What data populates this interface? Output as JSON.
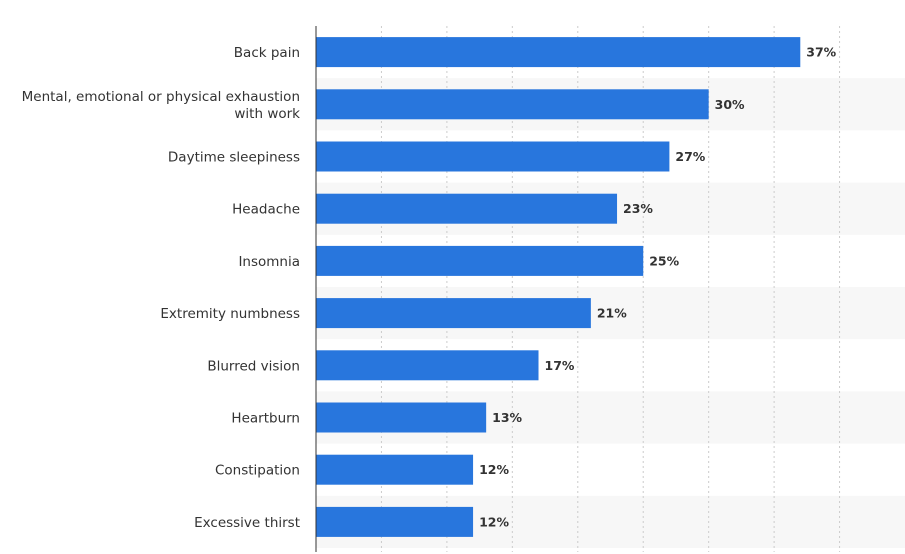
{
  "chart_data": {
    "type": "bar",
    "orientation": "horizontal",
    "title": "",
    "xlabel": "",
    "ylabel": "",
    "xlim": [
      0,
      45
    ],
    "grid": true,
    "categories": [
      "Back pain",
      "Mental, emotional or physical exhaustion with work",
      "Daytime sleepiness",
      "Headache",
      "Insomnia",
      "Extremity numbness",
      "Blurred vision",
      "Heartburn",
      "Constipation",
      "Excessive thirst"
    ],
    "values": [
      37,
      30,
      27,
      23,
      25,
      21,
      17,
      13,
      12,
      12
    ],
    "value_labels": [
      "37%",
      "30%",
      "27%",
      "23%",
      "25%",
      "21%",
      "17%",
      "13%",
      "12%",
      "12%"
    ],
    "bar_color": "#2876dd",
    "stripe_color": "#f7f7f7"
  }
}
